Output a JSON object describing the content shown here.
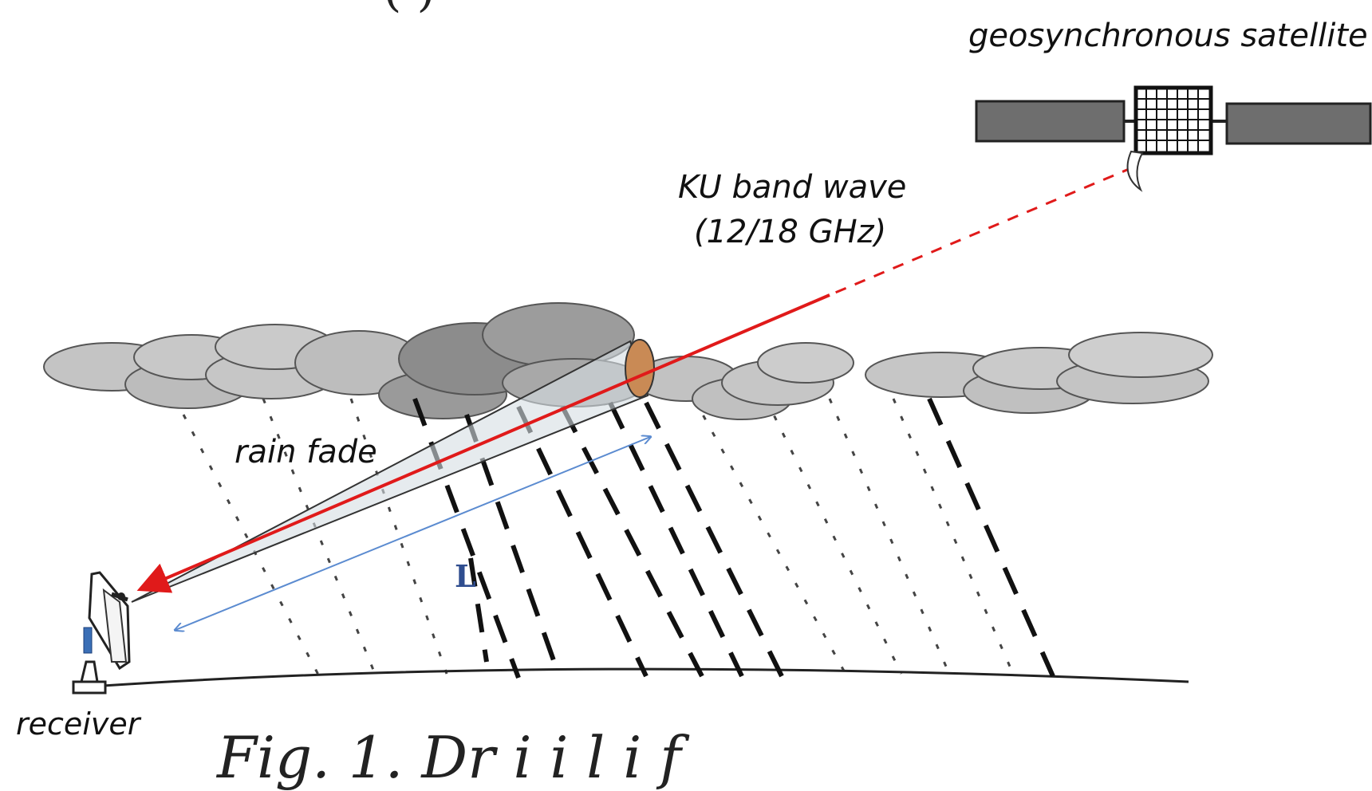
{
  "labels": {
    "top_fragment": "(                              )",
    "satellite": "geosynchronous satellite",
    "wave_line1": "KU band wave",
    "wave_line2": "(12/18 GHz)",
    "rain_fade": "rain fade",
    "path_length": "L",
    "receiver": "receiver",
    "caption_fragment": "Fig. 1.  Dr  i               i   l                 i      f"
  },
  "colors": {
    "signal": "#e01a1a",
    "path_length_arrow": "#5b8bd0",
    "cloud_light": "#c4c4c4",
    "cloud_dark": "#8c8c8c",
    "satellite_panel": "#6e6e6e",
    "rain_fade_region": "#c98a55"
  }
}
